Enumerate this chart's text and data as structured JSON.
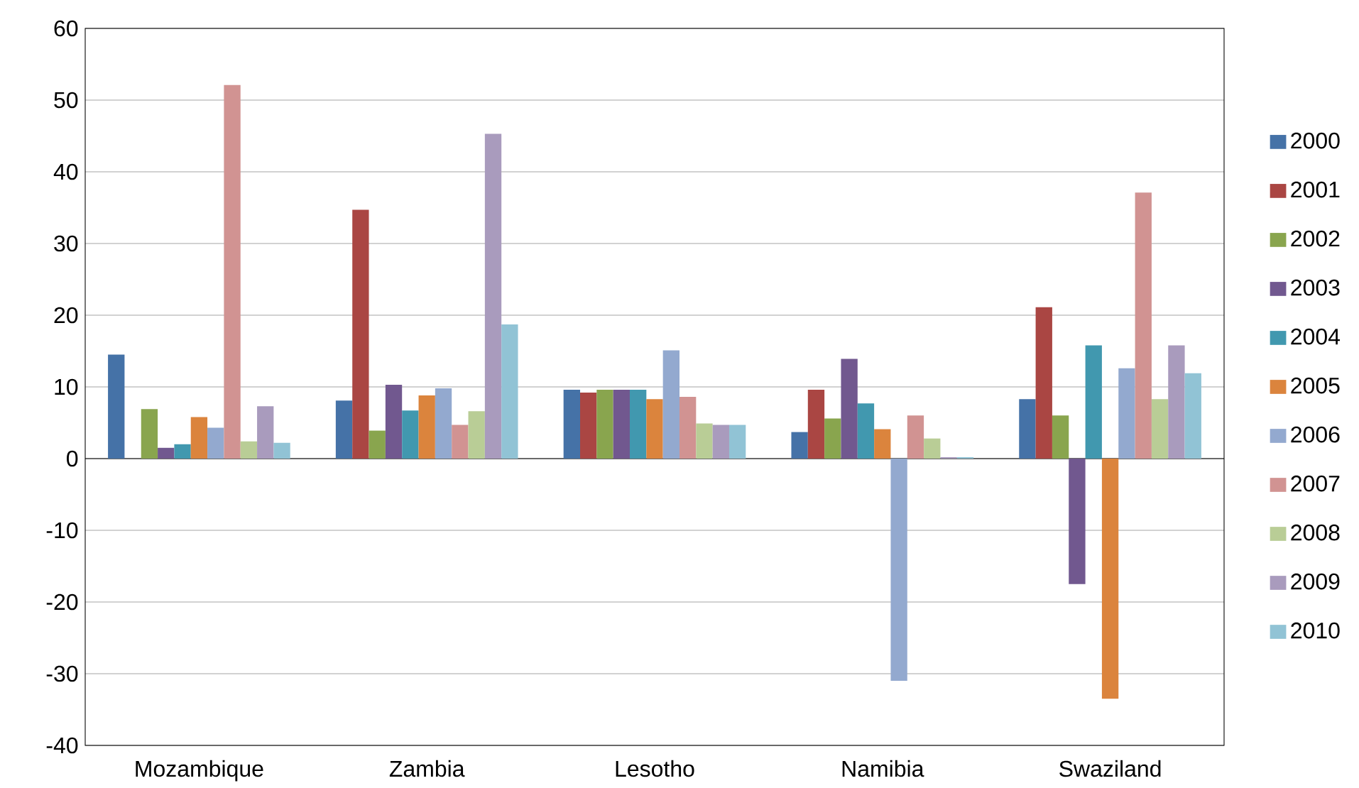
{
  "chart_data": {
    "type": "bar",
    "categories": [
      "Mozambique",
      "Zambia",
      "Lesotho",
      "Namibia",
      "Swaziland"
    ],
    "series": [
      {
        "name": "2000",
        "color": "#4572a7",
        "values": [
          14.5,
          8.1,
          9.6,
          3.7,
          8.3
        ]
      },
      {
        "name": "2001",
        "color": "#aa4643",
        "values": [
          null,
          34.7,
          9.2,
          9.6,
          21.1
        ]
      },
      {
        "name": "2002",
        "color": "#89a54e",
        "values": [
          6.9,
          3.9,
          9.6,
          5.6,
          6.0
        ]
      },
      {
        "name": "2003",
        "color": "#71588f",
        "values": [
          1.5,
          10.3,
          9.6,
          13.9,
          -17.5
        ]
      },
      {
        "name": "2004",
        "color": "#4198af",
        "values": [
          2.0,
          6.7,
          9.6,
          7.7,
          15.8
        ]
      },
      {
        "name": "2005",
        "color": "#db843d",
        "values": [
          5.8,
          8.8,
          8.3,
          4.1,
          -33.5
        ]
      },
      {
        "name": "2006",
        "color": "#93a9cf",
        "values": [
          4.3,
          9.8,
          15.1,
          -31.0,
          12.6
        ]
      },
      {
        "name": "2007",
        "color": "#d19392",
        "values": [
          52.1,
          4.7,
          8.6,
          6.0,
          37.1
        ]
      },
      {
        "name": "2008",
        "color": "#b9cd96",
        "values": [
          2.4,
          6.6,
          4.9,
          2.8,
          8.3
        ]
      },
      {
        "name": "2009",
        "color": "#a99bbd",
        "values": [
          7.3,
          45.3,
          4.7,
          0.2,
          15.8
        ]
      },
      {
        "name": "2010",
        "color": "#91c3d5",
        "values": [
          2.2,
          18.7,
          4.7,
          0.2,
          11.9
        ]
      }
    ],
    "ylim": [
      -40,
      60
    ],
    "yticks": [
      -40,
      -30,
      -20,
      -10,
      0,
      10,
      20,
      30,
      40,
      50,
      60
    ],
    "grid": "y",
    "legend": "right"
  }
}
